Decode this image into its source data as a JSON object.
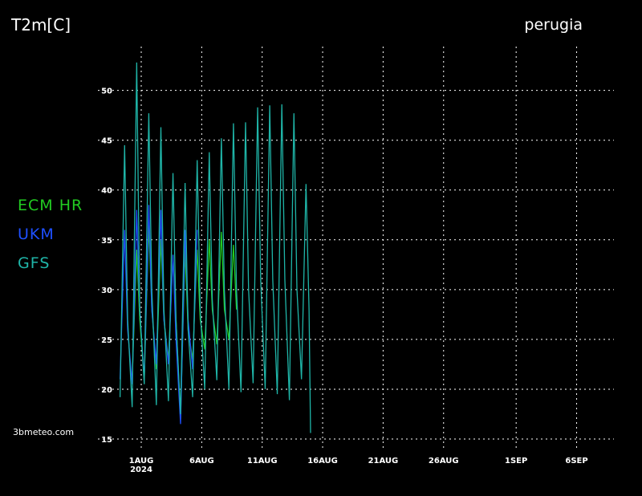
{
  "chart_data": {
    "type": "line",
    "title": "T2m[C]",
    "subtitle": "perugia",
    "source": "3bmeteo.com",
    "x": [
      "2024-07-30T06:00",
      "2024-07-30T15:00",
      "2024-07-30T21:00",
      "2024-07-31T06:00",
      "2024-07-31T15:00",
      "2024-07-31T21:00",
      "2024-08-01T06:00",
      "2024-08-01T15:00",
      "2024-08-01T21:00",
      "2024-08-02T06:00",
      "2024-08-02T15:00",
      "2024-08-02T21:00",
      "2024-08-03T06:00",
      "2024-08-03T15:00",
      "2024-08-03T21:00",
      "2024-08-04T06:00",
      "2024-08-04T15:00",
      "2024-08-04T21:00",
      "2024-08-05T06:00",
      "2024-08-05T15:00",
      "2024-08-05T21:00",
      "2024-08-06T06:00",
      "2024-08-06T15:00",
      "2024-08-06T21:00",
      "2024-08-07T06:00",
      "2024-08-07T15:00",
      "2024-08-07T21:00",
      "2024-08-08T06:00",
      "2024-08-08T15:00",
      "2024-08-08T21:00",
      "2024-08-09T06:00",
      "2024-08-09T15:00",
      "2024-08-09T21:00",
      "2024-08-10T06:00",
      "2024-08-10T15:00",
      "2024-08-10T21:00",
      "2024-08-11T06:00",
      "2024-08-11T15:00",
      "2024-08-11T21:00",
      "2024-08-12T06:00",
      "2024-08-12T15:00",
      "2024-08-12T21:00",
      "2024-08-13T06:00",
      "2024-08-13T15:00",
      "2024-08-13T21:00",
      "2024-08-14T06:00",
      "2024-08-14T15:00",
      "2024-08-14T21:00",
      "2024-08-15T00:00"
    ],
    "series": [
      {
        "name": "ECM HR",
        "color": "#22cc22",
        "values": [
          null,
          null,
          null,
          21,
          34,
          27,
          21,
          36.5,
          28,
          22,
          35,
          27,
          23,
          33.5,
          27,
          17,
          34,
          26,
          23,
          34,
          27,
          24,
          35,
          28,
          24.5,
          35.8,
          28,
          25,
          34.5,
          28,
          null,
          null,
          null,
          null,
          null,
          null,
          null,
          null,
          null,
          null,
          null,
          null,
          null,
          null,
          null,
          null,
          null,
          null,
          null
        ]
      },
      {
        "name": "UKM",
        "color": "#1e50ff",
        "values": [
          21,
          36,
          26,
          20.5,
          38,
          28,
          21,
          38.5,
          28,
          22.5,
          38,
          27,
          22.5,
          33.5,
          25,
          16.5,
          36,
          27,
          22,
          36,
          null,
          null,
          null,
          null,
          null,
          null,
          null,
          null,
          null,
          null,
          null,
          null,
          null,
          null,
          null,
          null,
          null,
          null,
          null,
          null,
          null,
          null,
          null,
          null,
          null,
          null,
          null,
          null,
          null
        ]
      },
      {
        "name": "GFS",
        "color": "#1fb5a8",
        "values": [
          19.2,
          44.5,
          27,
          18.2,
          52.8,
          28,
          20.5,
          47.7,
          30,
          18.4,
          46.3,
          28,
          18.8,
          41.7,
          27,
          17.5,
          40.7,
          26,
          19.2,
          43,
          28,
          20,
          43.8,
          29,
          20.9,
          45.2,
          30,
          20,
          46.7,
          30,
          19.7,
          46.8,
          30,
          20.6,
          48.3,
          31,
          20,
          48.5,
          31,
          19.5,
          48.6,
          31,
          18.9,
          47.7,
          30,
          21,
          40.6,
          28,
          15.6
        ]
      }
    ],
    "xlim": [
      "2024-07-28T10:00",
      "2024-09-09T02:00"
    ],
    "xticks": [
      {
        "value": "2024-08-01",
        "label": "1AUG"
      },
      {
        "value": "2024-08-06",
        "label": "6AUG"
      },
      {
        "value": "2024-08-11",
        "label": "11AUG"
      },
      {
        "value": "2024-08-16",
        "label": "16AUG"
      },
      {
        "value": "2024-08-21",
        "label": "21AUG"
      },
      {
        "value": "2024-08-26",
        "label": "26AUG"
      },
      {
        "value": "2024-09-01",
        "label": "1SEP"
      },
      {
        "value": "2024-09-06",
        "label": "6SEP"
      }
    ],
    "x_year": "2024",
    "ylim": [
      14,
      54
    ],
    "yticks": [
      15,
      20,
      25,
      30,
      35,
      40,
      45,
      50
    ],
    "grid": true
  }
}
